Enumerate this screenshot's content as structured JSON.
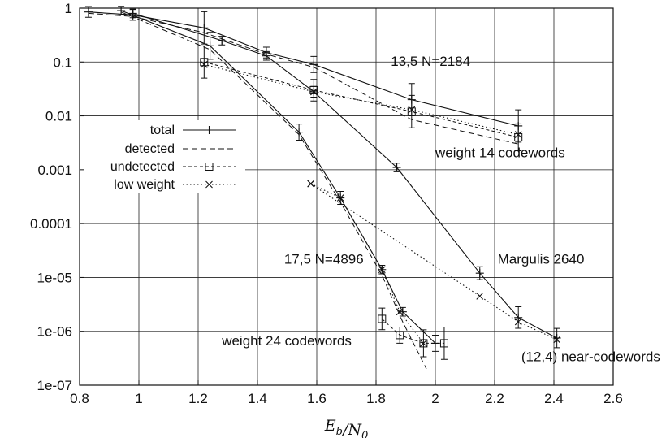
{
  "chart_data": {
    "type": "line",
    "title": "",
    "xlabel": "E_b/N_0",
    "ylabel": "",
    "xlim": [
      0.8,
      2.6
    ],
    "ylim": [
      1e-07,
      1
    ],
    "yscale": "log",
    "grid": true,
    "x_ticks": [
      0.8,
      1,
      1.2,
      1.4,
      1.6,
      1.8,
      2,
      2.2,
      2.4,
      2.6
    ],
    "x_tick_labels": [
      "0.8",
      "1",
      "1.2",
      "1.4",
      "1.6",
      "1.8",
      "2",
      "2.2",
      "2.4",
      "2.6"
    ],
    "y_ticks": [
      1e-07,
      1e-06,
      1e-05,
      0.0001,
      0.001,
      0.01,
      0.1,
      1
    ],
    "y_tick_labels": [
      "1e-07",
      "1e-06",
      "1e-05",
      "0.0001",
      "0.001",
      "0.01",
      "0.1",
      "1"
    ],
    "legend": {
      "placement": "left",
      "entries": [
        {
          "label": "total",
          "style": "total"
        },
        {
          "label": "detected",
          "style": "detected"
        },
        {
          "label": "undetected",
          "style": "undetected"
        },
        {
          "label": "low weight",
          "style": "lowweight"
        }
      ]
    },
    "annotations": [
      {
        "text": "13,5 N=2184",
        "x": 1.85,
        "y": 0.085
      },
      {
        "text": "weight 14 codewords",
        "x": 2.0,
        "y": 0.0017
      },
      {
        "text": "17,5 N=4896",
        "x": 1.49,
        "y": 1.8e-05
      },
      {
        "text": "Margulis 2640",
        "x": 2.21,
        "y": 1.8e-05
      },
      {
        "text": "weight 24 codewords",
        "x": 1.28,
        "y": 5.5e-07
      },
      {
        "text": "(12,4) near-codewords",
        "x": 2.29,
        "y": 2.8e-07
      }
    ],
    "series": [
      {
        "style": "total",
        "x": [
          0.83,
          0.98,
          1.22,
          1.43,
          1.59,
          1.92,
          2.28
        ],
        "y": [
          0.85,
          0.75,
          0.43,
          0.15,
          0.09,
          0.02,
          0.0065
        ],
        "err": [
          0.1,
          0.1,
          0.3,
          0.1,
          0.15,
          0.3,
          0.3
        ]
      },
      {
        "style": "detected",
        "x": [
          0.83,
          0.98,
          1.22,
          1.43,
          1.59,
          1.92,
          2.28
        ],
        "y": [
          0.8,
          0.7,
          0.35,
          0.14,
          0.08,
          0.0085,
          0.003
        ],
        "err": null
      },
      {
        "style": "undetected",
        "x": [
          1.22,
          1.59,
          1.92,
          2.28
        ],
        "y": [
          0.1,
          0.03,
          0.012,
          0.004
        ],
        "err": [
          0.3,
          0.2,
          0.3,
          0.25
        ]
      },
      {
        "style": "lowweight",
        "x": [
          1.22,
          1.59,
          1.92,
          2.28
        ],
        "y": [
          0.09,
          0.028,
          0.013,
          0.0045
        ],
        "err": null
      },
      {
        "style": "total",
        "x": [
          0.94,
          1.24,
          1.54,
          1.68,
          1.82,
          1.89,
          2.0
        ],
        "y": [
          0.9,
          0.2,
          0.005,
          0.0003,
          1.4e-05,
          2.3e-06,
          6e-07
        ],
        "err": [
          0.08,
          0.25,
          0.15,
          0.12,
          0.08,
          0.08,
          0.15
        ]
      },
      {
        "style": "detected",
        "x": [
          0.94,
          1.24,
          1.54,
          1.68,
          1.82,
          1.89,
          1.97
        ],
        "y": [
          0.85,
          0.17,
          0.0045,
          0.00025,
          1.1e-05,
          1.5e-06,
          2e-07
        ],
        "err": null
      },
      {
        "style": "undetected",
        "x": [
          1.82,
          1.88,
          1.96,
          2.03
        ],
        "y": [
          1.7e-06,
          8.5e-07,
          6e-07,
          6e-07
        ],
        "err": [
          0.2,
          0.15,
          0.25,
          0.3
        ]
      },
      {
        "style": "lowweight",
        "x": [
          1.58,
          1.68,
          1.82,
          1.88,
          1.96
        ],
        "y": [
          0.00055,
          0.0003,
          1.4e-05,
          2.3e-06,
          6e-07
        ],
        "err": null
      },
      {
        "style": "total",
        "x": [
          0.98,
          1.28,
          1.43,
          1.59,
          1.87,
          2.15,
          2.28,
          2.41
        ],
        "y": [
          0.8,
          0.25,
          0.13,
          0.028,
          0.0011,
          1.2e-05,
          1.8e-06,
          7.5e-07
        ],
        "err": [
          0.08,
          0.08,
          0.08,
          0.1,
          0.08,
          0.12,
          0.2,
          0.18
        ]
      },
      {
        "style": "lowweight",
        "x": [
          1.58,
          2.15,
          2.28,
          2.41
        ],
        "y": [
          0.00055,
          4.5e-06,
          1.5e-06,
          7e-07
        ],
        "err": null
      }
    ]
  }
}
